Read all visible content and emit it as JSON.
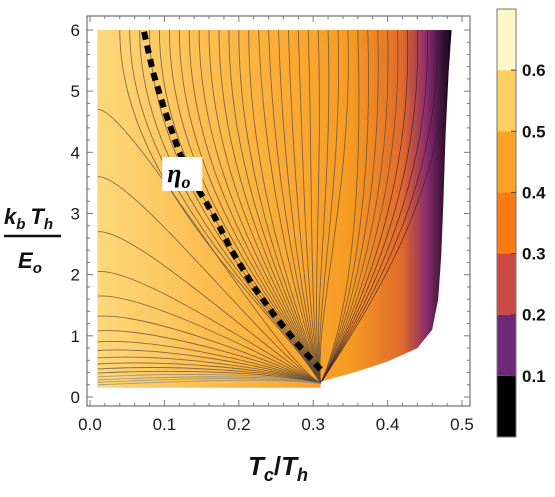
{
  "chart_data": {
    "type": "heatmap",
    "subtype": "contour",
    "x": {
      "label_main": "T",
      "label_main_sub": "c",
      "label_div": "/",
      "label_den": "T",
      "label_den_sub": "h",
      "range": [
        0.0,
        0.5
      ],
      "ticks": [
        0.0,
        0.1,
        0.2,
        0.3,
        0.4,
        0.5
      ],
      "tick_labels": [
        "0.0",
        "0.1",
        "0.2",
        "0.3",
        "0.4",
        "0.5"
      ]
    },
    "y": {
      "label_num_a": "k",
      "label_num_a_sub": "b",
      "label_num_b": "T",
      "label_num_b_sub": "h",
      "label_den": "E",
      "label_den_sub": "o",
      "range": [
        0,
        6
      ],
      "ticks": [
        0,
        1,
        2,
        3,
        4,
        5,
        6
      ],
      "tick_labels": [
        "0",
        "1",
        "2",
        "3",
        "4",
        "5",
        "6"
      ]
    },
    "colorbar": {
      "levels": [
        0.0,
        0.1,
        0.2,
        0.3,
        0.4,
        0.5,
        0.6,
        0.7
      ],
      "tick_labels": [
        "0.1",
        "0.2",
        "0.3",
        "0.4",
        "0.5",
        "0.6"
      ],
      "colors": [
        "#000000",
        "#6e2a78",
        "#cc4a44",
        "#fb7a12",
        "#faa427",
        "#fdcf60",
        "#fff6c9"
      ]
    },
    "domain": {
      "x_min": 0.01,
      "y_min": 0.15,
      "y_max": 6.0,
      "right_boundary": [
        [
          0.31,
          0.25
        ],
        [
          0.36,
          0.42
        ],
        [
          0.4,
          0.58
        ],
        [
          0.44,
          0.8
        ],
        [
          0.46,
          1.1
        ],
        [
          0.468,
          1.6
        ],
        [
          0.472,
          2.3
        ],
        [
          0.475,
          3.2
        ],
        [
          0.478,
          4.3
        ],
        [
          0.482,
          5.3
        ],
        [
          0.486,
          6.0
        ]
      ],
      "convergence_point": [
        0.31,
        0.22
      ]
    },
    "annotation": {
      "label_main": "η",
      "label_sub": "o",
      "at": [
        0.12,
        3.45
      ],
      "curve": [
        [
          0.31,
          0.45
        ],
        [
          0.28,
          0.85
        ],
        [
          0.25,
          1.3
        ],
        [
          0.22,
          1.8
        ],
        [
          0.19,
          2.4
        ],
        [
          0.165,
          3.0
        ],
        [
          0.14,
          3.5
        ],
        [
          0.12,
          4.0
        ],
        [
          0.1,
          4.7
        ],
        [
          0.085,
          5.3
        ],
        [
          0.072,
          6.0
        ]
      ]
    }
  }
}
